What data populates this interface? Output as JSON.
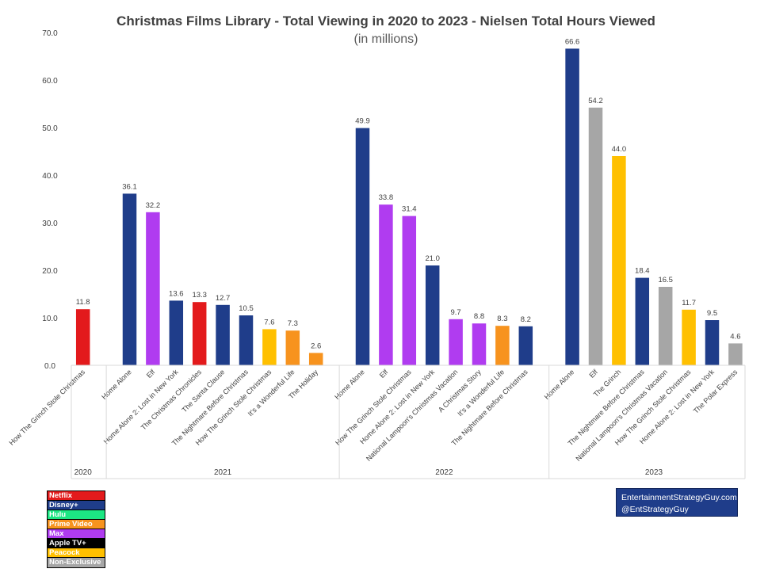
{
  "chart_data": {
    "type": "bar",
    "title": "Christmas Films Library - Total Viewing in 2020 to 2023 - Nielsen Total Hours Viewed",
    "subtitle": "(in millions)",
    "ylim": [
      0,
      70
    ],
    "yticks": [
      "0.0",
      "10.0",
      "20.0",
      "30.0",
      "40.0",
      "50.0",
      "60.0",
      "70.0"
    ],
    "grid": false,
    "groups": [
      {
        "year": "2020",
        "bars": [
          {
            "label": "How The Grinch Stole Christmas",
            "value": 11.8,
            "text": "11.8",
            "platform": "Netflix"
          }
        ]
      },
      {
        "year": "2021",
        "bars": [
          {
            "label": "Home Alone",
            "value": 36.1,
            "text": "36.1",
            "platform": "Disney+"
          },
          {
            "label": "Elf",
            "value": 32.2,
            "text": "32.2",
            "platform": "Max"
          },
          {
            "label": "Home Alone 2: Lost in New York",
            "value": 13.6,
            "text": "13.6",
            "platform": "Disney+"
          },
          {
            "label": "The Christmas Chronicles",
            "value": 13.3,
            "text": "13.3",
            "platform": "Netflix"
          },
          {
            "label": "The Santa Clause",
            "value": 12.7,
            "text": "12.7",
            "platform": "Disney+"
          },
          {
            "label": "The Nightmare Before Christmas",
            "value": 10.5,
            "text": "10.5",
            "platform": "Disney+"
          },
          {
            "label": "How The Grinch Stole Christmas",
            "value": 7.6,
            "text": "7.6",
            "platform": "Peacock"
          },
          {
            "label": "It's a Wonderful Life",
            "value": 7.3,
            "text": "7.3",
            "platform": "Prime Video"
          },
          {
            "label": "The Holiday",
            "value": 2.6,
            "text": "2.6",
            "platform": "Prime Video"
          }
        ]
      },
      {
        "year": "2022",
        "bars": [
          {
            "label": "Home Alone",
            "value": 49.9,
            "text": "49.9",
            "platform": "Disney+"
          },
          {
            "label": "Elf",
            "value": 33.8,
            "text": "33.8",
            "platform": "Max"
          },
          {
            "label": "How The Grinch Stole Christmas",
            "value": 31.4,
            "text": "31.4",
            "platform": "Max"
          },
          {
            "label": "Home Alone 2: Lost in New York",
            "value": 21.0,
            "text": "21.0",
            "platform": "Disney+"
          },
          {
            "label": "National Lampoon's Christmas Vacation",
            "value": 9.7,
            "text": "9.7",
            "platform": "Max"
          },
          {
            "label": "A Christmas Story",
            "value": 8.8,
            "text": "8.8",
            "platform": "Max"
          },
          {
            "label": "It's a Wonderful Life",
            "value": 8.3,
            "text": "8.3",
            "platform": "Prime Video"
          },
          {
            "label": "The Nightmare Before Christmas",
            "value": 8.2,
            "text": "8.2",
            "platform": "Disney+"
          }
        ]
      },
      {
        "year": "2023",
        "bars": [
          {
            "label": "Home Alone",
            "value": 66.6,
            "text": "66.6",
            "platform": "Disney+"
          },
          {
            "label": "Elf",
            "value": 54.2,
            "text": "54.2",
            "platform": "Non-Exclusive"
          },
          {
            "label": "The Grinch",
            "value": 44.0,
            "text": "44.0",
            "platform": "Peacock"
          },
          {
            "label": "The Nightmare Before Christmas",
            "value": 18.4,
            "text": "18.4",
            "platform": "Disney+"
          },
          {
            "label": "National Lampoon's Christmas Vacation",
            "value": 16.5,
            "text": "16.5",
            "platform": "Non-Exclusive"
          },
          {
            "label": "How The Grinch Stole Christmas",
            "value": 11.7,
            "text": "11.7",
            "platform": "Peacock"
          },
          {
            "label": "Home Alone 2: Lost in New York",
            "value": 9.5,
            "text": "9.5",
            "platform": "Disney+"
          },
          {
            "label": "The Polar Express",
            "value": 4.6,
            "text": "4.6",
            "platform": "Non-Exclusive"
          }
        ]
      }
    ]
  },
  "legend": [
    {
      "name": "Netflix",
      "color": "#e31a1c"
    },
    {
      "name": "Disney+",
      "color": "#1f3d8a"
    },
    {
      "name": "Hulu",
      "color": "#1ce783"
    },
    {
      "name": "Prime Video",
      "color": "#f7931e"
    },
    {
      "name": "Max",
      "color": "#b03cf0"
    },
    {
      "name": "Apple TV+",
      "color": "#000000"
    },
    {
      "name": "Peacock",
      "color": "#ffc000"
    },
    {
      "name": "Non-Exclusive",
      "color": "#a6a6a6"
    }
  ],
  "credit": {
    "line1": "EntertainmentStrategyGuy.com",
    "line2": "@EntStrategyGuy"
  }
}
